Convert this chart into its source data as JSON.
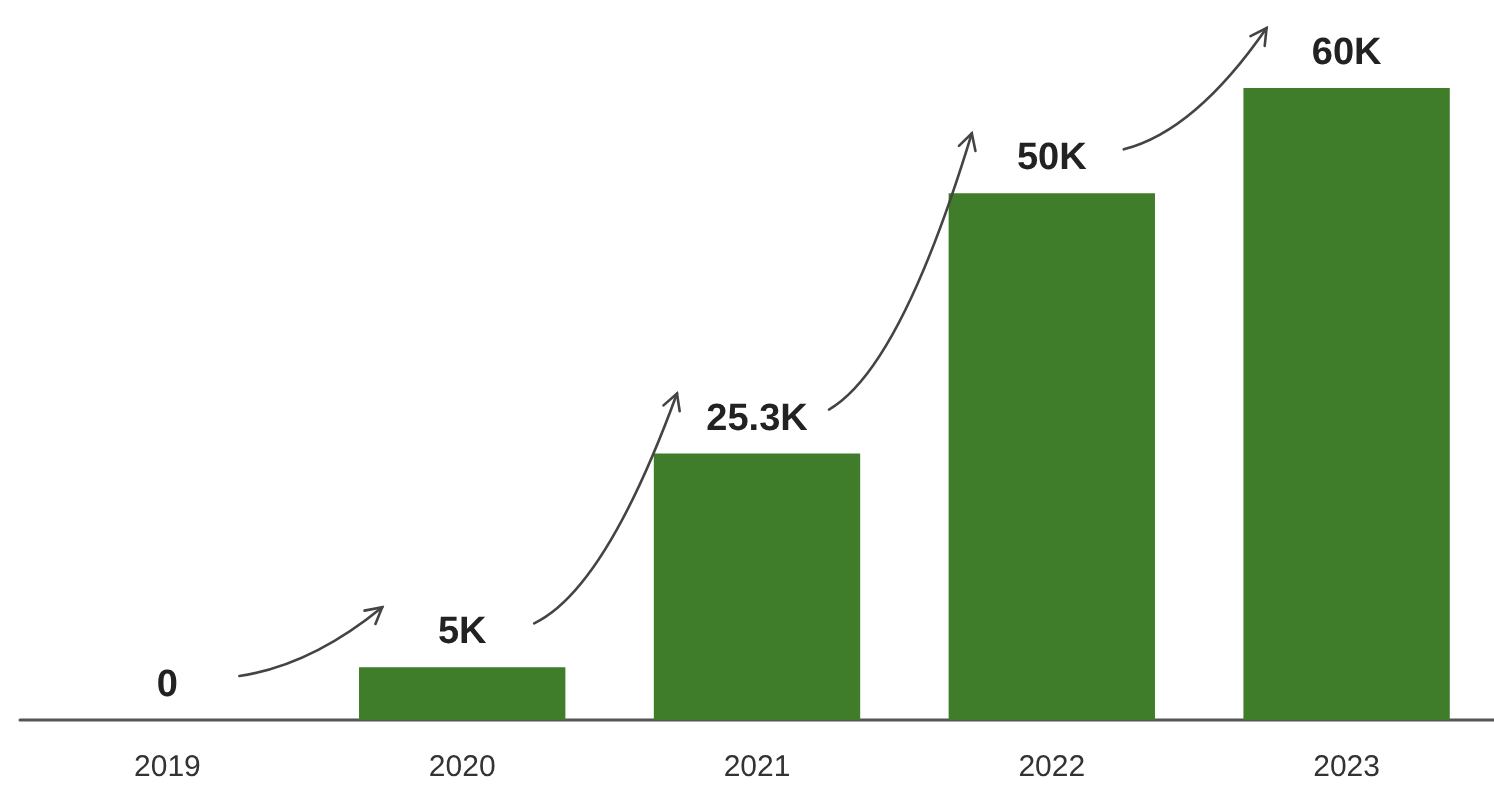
{
  "chart_data": {
    "type": "bar",
    "categories": [
      "2019",
      "2020",
      "2021",
      "2022",
      "2023"
    ],
    "values": [
      0,
      5,
      25.3,
      50,
      60
    ],
    "value_labels": [
      "0",
      "5K",
      "25.3K",
      "50K",
      "60K"
    ],
    "color": "#3f7d2a"
  }
}
